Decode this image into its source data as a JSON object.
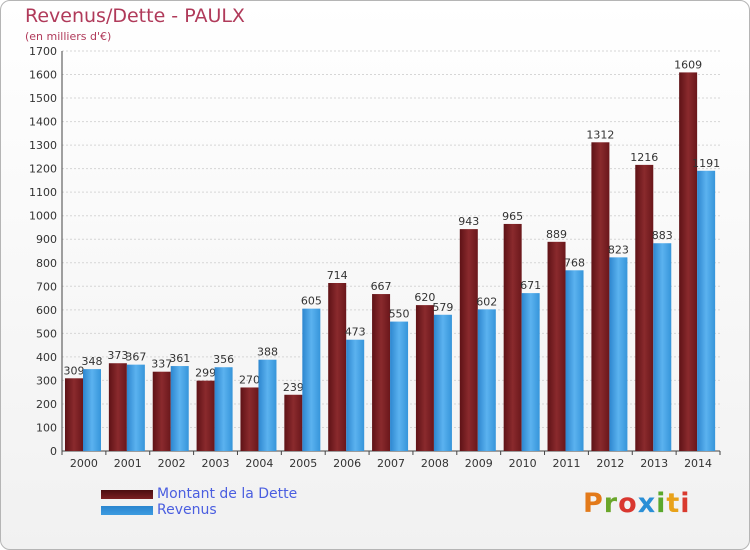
{
  "chart_data": {
    "type": "bar",
    "title": "Revenus/Dette - PAULX",
    "subtitle": "(en milliers d'€)",
    "categories": [
      "2000",
      "2001",
      "2002",
      "2003",
      "2004",
      "2005",
      "2006",
      "2007",
      "2008",
      "2009",
      "2010",
      "2011",
      "2012",
      "2013",
      "2014"
    ],
    "series": [
      {
        "name": "Montant de la Dette",
        "color": "#7a1f22",
        "values": [
          309,
          373,
          337,
          299,
          270,
          239,
          714,
          667,
          620,
          943,
          965,
          889,
          1312,
          1216,
          1609
        ]
      },
      {
        "name": "Revenus",
        "color": "#3d9be0",
        "values": [
          348,
          367,
          361,
          356,
          388,
          605,
          473,
          550,
          579,
          602,
          671,
          768,
          823,
          883,
          1191
        ]
      }
    ],
    "ylim": [
      0,
      1700
    ],
    "yticks": [
      0,
      100,
      200,
      300,
      400,
      500,
      600,
      700,
      800,
      900,
      1000,
      1100,
      1200,
      1300,
      1400,
      1500,
      1600,
      1700
    ],
    "grid": true,
    "legend": "bottom-left"
  },
  "logo": {
    "text": "Proxiti"
  }
}
